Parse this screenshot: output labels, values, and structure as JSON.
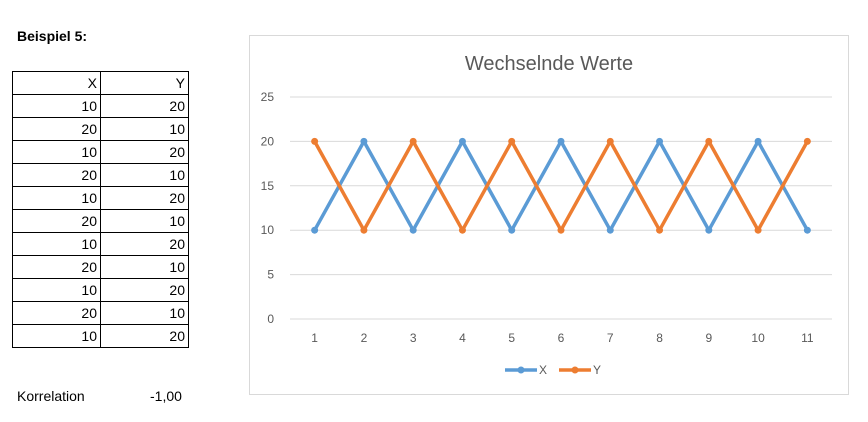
{
  "section": {
    "title": "Beispiel 5:"
  },
  "table": {
    "headers": [
      "X",
      "Y"
    ],
    "rows": [
      [
        "10",
        "20"
      ],
      [
        "20",
        "10"
      ],
      [
        "10",
        "20"
      ],
      [
        "20",
        "10"
      ],
      [
        "10",
        "20"
      ],
      [
        "20",
        "10"
      ],
      [
        "10",
        "20"
      ],
      [
        "20",
        "10"
      ],
      [
        "10",
        "20"
      ],
      [
        "20",
        "10"
      ],
      [
        "10",
        "20"
      ]
    ]
  },
  "correlation": {
    "label": "Korrelation",
    "value": "-1,00"
  },
  "chart_data": {
    "type": "line",
    "title": "Wechselnde Werte",
    "x": [
      1,
      2,
      3,
      4,
      5,
      6,
      7,
      8,
      9,
      10,
      11
    ],
    "series": [
      {
        "name": "X",
        "values": [
          10,
          20,
          10,
          20,
          10,
          20,
          10,
          20,
          10,
          20,
          10
        ],
        "color": "#5b9bd5"
      },
      {
        "name": "Y",
        "values": [
          20,
          10,
          20,
          10,
          20,
          10,
          20,
          10,
          20,
          10,
          20
        ],
        "color": "#ed7d31"
      }
    ],
    "ylim": [
      0,
      25
    ],
    "yticks": [
      0,
      5,
      10,
      15,
      20,
      25
    ],
    "grid": true,
    "legend": "bottom",
    "markers": true
  }
}
